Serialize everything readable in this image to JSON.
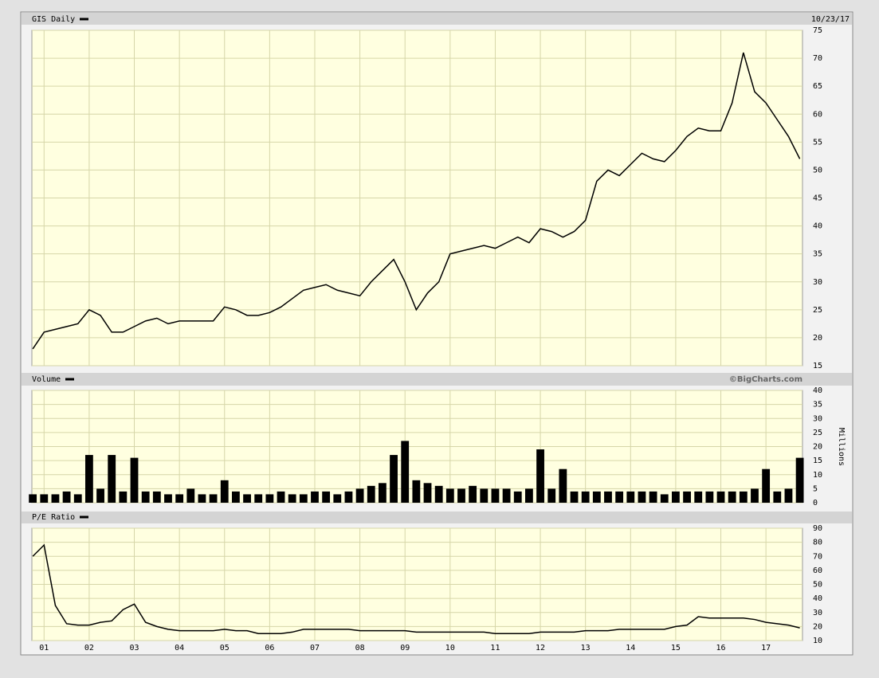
{
  "chart_data": [
    {
      "type": "line",
      "title": "GIS Daily",
      "date": "10/23/17",
      "color": "#000000",
      "xlim": [
        2000.73,
        2017.81
      ],
      "ylim": [
        15,
        75
      ],
      "yticks": [
        15,
        20,
        25,
        30,
        35,
        40,
        45,
        50,
        55,
        60,
        65,
        70,
        75
      ],
      "grid": true,
      "x": [
        2000.75,
        2001,
        2001.25,
        2001.5,
        2001.75,
        2002,
        2002.25,
        2002.5,
        2002.75,
        2003,
        2003.25,
        2003.5,
        2003.75,
        2004,
        2004.25,
        2004.5,
        2004.75,
        2005,
        2005.25,
        2005.5,
        2005.75,
        2006,
        2006.25,
        2006.5,
        2006.75,
        2007,
        2007.25,
        2007.5,
        2007.75,
        2008,
        2008.25,
        2008.5,
        2008.75,
        2009,
        2009.25,
        2009.5,
        2009.75,
        2010,
        2010.25,
        2010.5,
        2010.75,
        2011,
        2011.25,
        2011.5,
        2011.75,
        2012,
        2012.25,
        2012.5,
        2012.75,
        2013,
        2013.25,
        2013.5,
        2013.75,
        2014,
        2014.25,
        2014.5,
        2014.75,
        2015,
        2015.25,
        2015.5,
        2015.75,
        2016,
        2016.25,
        2016.5,
        2016.75,
        2017,
        2017.25,
        2017.5,
        2017.75
      ],
      "values": [
        18,
        21,
        21.5,
        22,
        22.5,
        25,
        24,
        21,
        21,
        22,
        23,
        23.5,
        22.5,
        23,
        23,
        23,
        23,
        25.5,
        25,
        24,
        24,
        24.5,
        25.5,
        27,
        28.5,
        29,
        29.5,
        28.5,
        28,
        27.5,
        30,
        32,
        34,
        30,
        25,
        28,
        30,
        35,
        35.5,
        36,
        36.5,
        36,
        37,
        38,
        37,
        39.5,
        39,
        38,
        39,
        41,
        48,
        50,
        49,
        51,
        53,
        52,
        51.5,
        53.5,
        56,
        57.5,
        57,
        57,
        62,
        71,
        64,
        62,
        59,
        56,
        52
      ]
    },
    {
      "type": "bar",
      "title": "Volume",
      "credit": "©BigCharts.com",
      "ylabel": "Millions",
      "color": "#000000",
      "xlim": [
        2000.73,
        2017.81
      ],
      "ylim": [
        0,
        40
      ],
      "yticks": [
        0,
        5,
        10,
        15,
        20,
        25,
        30,
        35,
        40
      ],
      "grid": true,
      "x": [
        2000.75,
        2001,
        2001.25,
        2001.5,
        2001.75,
        2002,
        2002.25,
        2002.5,
        2002.75,
        2003,
        2003.25,
        2003.5,
        2003.75,
        2004,
        2004.25,
        2004.5,
        2004.75,
        2005,
        2005.25,
        2005.5,
        2005.75,
        2006,
        2006.25,
        2006.5,
        2006.75,
        2007,
        2007.25,
        2007.5,
        2007.75,
        2008,
        2008.25,
        2008.5,
        2008.75,
        2009,
        2009.25,
        2009.5,
        2009.75,
        2010,
        2010.25,
        2010.5,
        2010.75,
        2011,
        2011.25,
        2011.5,
        2011.75,
        2012,
        2012.25,
        2012.5,
        2012.75,
        2013,
        2013.25,
        2013.5,
        2013.75,
        2014,
        2014.25,
        2014.5,
        2014.75,
        2015,
        2015.25,
        2015.5,
        2015.75,
        2016,
        2016.25,
        2016.5,
        2016.75,
        2017,
        2017.25,
        2017.5,
        2017.75
      ],
      "values": [
        3,
        3,
        3,
        4,
        3,
        17,
        5,
        17,
        4,
        16,
        4,
        4,
        3,
        3,
        5,
        3,
        3,
        8,
        4,
        3,
        3,
        3,
        4,
        3,
        3,
        4,
        4,
        3,
        4,
        5,
        6,
        7,
        17,
        22,
        8,
        7,
        6,
        5,
        5,
        6,
        5,
        5,
        5,
        4,
        5,
        19,
        5,
        12,
        4,
        4,
        4,
        4,
        4,
        4,
        4,
        4,
        3,
        4,
        4,
        4,
        4,
        4,
        4,
        4,
        5,
        12,
        4,
        5,
        16
      ]
    },
    {
      "type": "line",
      "title": "P/E Ratio",
      "color": "#000000",
      "xlim": [
        2000.73,
        2017.81
      ],
      "ylim": [
        10,
        90
      ],
      "yticks": [
        10,
        20,
        30,
        40,
        50,
        60,
        70,
        80,
        90
      ],
      "grid": true,
      "xticks": [
        {
          "value": 2001,
          "label": "01"
        },
        {
          "value": 2002,
          "label": "02"
        },
        {
          "value": 2003,
          "label": "03"
        },
        {
          "value": 2004,
          "label": "04"
        },
        {
          "value": 2005,
          "label": "05"
        },
        {
          "value": 2006,
          "label": "06"
        },
        {
          "value": 2007,
          "label": "07"
        },
        {
          "value": 2008,
          "label": "08"
        },
        {
          "value": 2009,
          "label": "09"
        },
        {
          "value": 2010,
          "label": "10"
        },
        {
          "value": 2011,
          "label": "11"
        },
        {
          "value": 2012,
          "label": "12"
        },
        {
          "value": 2013,
          "label": "13"
        },
        {
          "value": 2014,
          "label": "14"
        },
        {
          "value": 2015,
          "label": "15"
        },
        {
          "value": 2016,
          "label": "16"
        },
        {
          "value": 2017,
          "label": "17"
        }
      ],
      "x": [
        2000.75,
        2001,
        2001.25,
        2001.5,
        2001.75,
        2002,
        2002.25,
        2002.5,
        2002.75,
        2003,
        2003.25,
        2003.5,
        2003.75,
        2004,
        2004.25,
        2004.5,
        2004.75,
        2005,
        2005.25,
        2005.5,
        2005.75,
        2006,
        2006.25,
        2006.5,
        2006.75,
        2007,
        2007.25,
        2007.5,
        2007.75,
        2008,
        2008.25,
        2008.5,
        2008.75,
        2009,
        2009.25,
        2009.5,
        2009.75,
        2010,
        2010.25,
        2010.5,
        2010.75,
        2011,
        2011.25,
        2011.5,
        2011.75,
        2012,
        2012.25,
        2012.5,
        2012.75,
        2013,
        2013.25,
        2013.5,
        2013.75,
        2014,
        2014.25,
        2014.5,
        2014.75,
        2015,
        2015.25,
        2015.5,
        2015.75,
        2016,
        2016.25,
        2016.5,
        2016.75,
        2017,
        2017.25,
        2017.5,
        2017.75
      ],
      "values": [
        70,
        78,
        35,
        22,
        21,
        21,
        23,
        24,
        32,
        36,
        23,
        20,
        18,
        17,
        17,
        17,
        17,
        18,
        17,
        17,
        15,
        15,
        15,
        16,
        18,
        18,
        18,
        18,
        18,
        17,
        17,
        17,
        17,
        17,
        16,
        16,
        16,
        16,
        16,
        16,
        16,
        15,
        15,
        15,
        15,
        16,
        16,
        16,
        16,
        17,
        17,
        17,
        18,
        18,
        18,
        18,
        18,
        20,
        21,
        27,
        26,
        26,
        26,
        26,
        25,
        23,
        22,
        21,
        19
      ]
    }
  ]
}
